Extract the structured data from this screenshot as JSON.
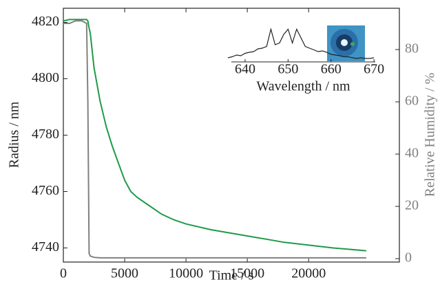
{
  "chart_data": [
    {
      "type": "line",
      "xlabel": "Time / s",
      "ylabel": "Radius / nm",
      "y2label": "Relative Humidity / %",
      "x": [
        0,
        500,
        1000,
        1500,
        1900,
        2000,
        2100,
        2200,
        2500,
        3000,
        3500,
        4000,
        4500,
        5000,
        5500,
        6000,
        7000,
        8000,
        9000,
        10000,
        12000,
        14000,
        16000,
        18000,
        20000,
        22000,
        24700
      ],
      "xlim": [
        0,
        27400
      ],
      "xticks": [
        0,
        5000,
        10000,
        15000,
        20000
      ],
      "ylim": [
        4735,
        4825
      ],
      "yticks": [
        4740,
        4760,
        4780,
        4800,
        4820
      ],
      "y2lim": [
        -1.3,
        95.8
      ],
      "y2ticks": [
        0,
        20,
        40,
        60,
        80
      ],
      "series": [
        {
          "name": "Radius",
          "color": "#1e9a48",
          "values": [
            4820.5,
            4821,
            4821,
            4821,
            4821,
            4820.5,
            4818,
            4816,
            4804,
            4792,
            4783,
            4776,
            4770,
            4764,
            4760,
            4758,
            4755,
            4752,
            4750,
            4748.5,
            4746.5,
            4745,
            4743.5,
            4742,
            4741,
            4740,
            4739
          ]
        },
        {
          "name": "Relative Humidity",
          "color": "#808080",
          "axis": "y2",
          "values": [
            90,
            90,
            91,
            91,
            90,
            60,
            2,
            1,
            0.5,
            0.3,
            0.3,
            0.3,
            0.3,
            0.3,
            0.3,
            0.3,
            0.3,
            0.3,
            0.3,
            0.3,
            0.3,
            0.3,
            0.3,
            0.3,
            0.3,
            0.3,
            0.3
          ]
        }
      ]
    },
    {
      "type": "line",
      "xlabel": "Wavelength / nm",
      "x": [
        636,
        637,
        638,
        639,
        640,
        641,
        642,
        643,
        644,
        645,
        646,
        647,
        648,
        649,
        650,
        651,
        652,
        653,
        654,
        655,
        656,
        657,
        658,
        659,
        660,
        661,
        662,
        663,
        664,
        665,
        666,
        667,
        668,
        669,
        670
      ],
      "xlim": [
        636.8,
        670.3
      ],
      "xticks": [
        640,
        650,
        660,
        670
      ],
      "ylim": [
        0,
        1
      ],
      "series": [
        {
          "color": "#222222",
          "values": [
            0.12,
            0.15,
            0.2,
            0.18,
            0.25,
            0.28,
            0.3,
            0.38,
            0.4,
            0.45,
            0.95,
            0.5,
            0.55,
            0.8,
            0.95,
            0.55,
            0.95,
            0.7,
            0.45,
            0.4,
            0.35,
            0.3,
            0.32,
            0.28,
            0.22,
            0.2,
            0.18,
            0.15,
            0.15,
            0.12,
            0.1,
            0.12,
            0.1,
            0.1,
            0.12
          ]
        }
      ]
    }
  ]
}
